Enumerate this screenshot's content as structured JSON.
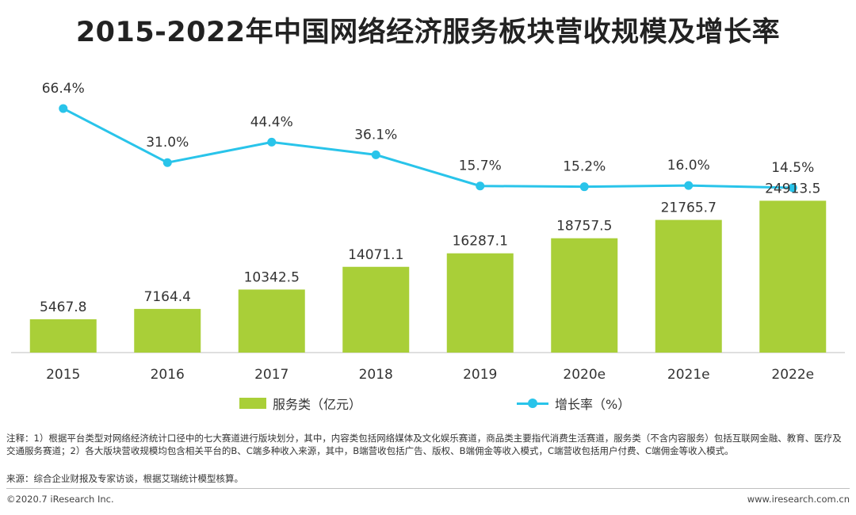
{
  "title": "2015-2022年中国网络经济服务板块营收规模及增长率",
  "colors": {
    "bar": "#a9cf38",
    "line": "#29c4ea",
    "axis": "#bfbfbf",
    "text": "#333333"
  },
  "chart_data": {
    "type": "bar",
    "title": "2015-2022年中国网络经济服务板块营收规模及增长率",
    "categories": [
      "2015",
      "2016",
      "2017",
      "2018",
      "2019",
      "2020e",
      "2021e",
      "2022e"
    ],
    "series": [
      {
        "name": "服务类（亿元）",
        "type": "bar",
        "values": [
          5467.8,
          7164.4,
          10342.5,
          14071.1,
          16287.1,
          18757.5,
          21765.7,
          24913.5
        ],
        "labels": [
          "5467.8",
          "7164.4",
          "10342.5",
          "14071.1",
          "16287.1",
          "18757.5",
          "21765.7",
          "24913.5"
        ]
      },
      {
        "name": "增长率（%）",
        "type": "line",
        "values": [
          66.4,
          31.0,
          44.4,
          36.1,
          15.7,
          15.2,
          16.0,
          14.5
        ],
        "labels": [
          "66.4%",
          "31.0%",
          "44.4%",
          "36.1%",
          "15.7%",
          "15.2%",
          "16.0%",
          "14.5%"
        ]
      }
    ],
    "ylim_bar": [
      0,
      26000
    ],
    "ylim_line": [
      0,
      70
    ],
    "legend_position": "bottom"
  },
  "legend": {
    "bar_label": "服务类（亿元）",
    "line_label": "增长率（%）"
  },
  "footer": {
    "note": "注释：1）根据平台类型对网络经济统计口径中的七大赛道进行版块划分，其中，内容类包括网络媒体及文化娱乐赛道，商品类主要指代消费生活赛道，服务类（不含内容服务）包括互联网金融、教育、医疗及交通服务赛道；2）各大版块营收规模均包含相关平台的B、C端多种收入来源，其中，B端营收包括广告、版权、B端佣金等收入模式，C端营收包括用户付费、C端佣金等收入模式。",
    "source": "来源：综合企业财报及专家访谈，根据艾瑞统计模型核算。",
    "copyright": "©2020.7 iResearch Inc.",
    "website": "www.iresearch.com.cn"
  }
}
